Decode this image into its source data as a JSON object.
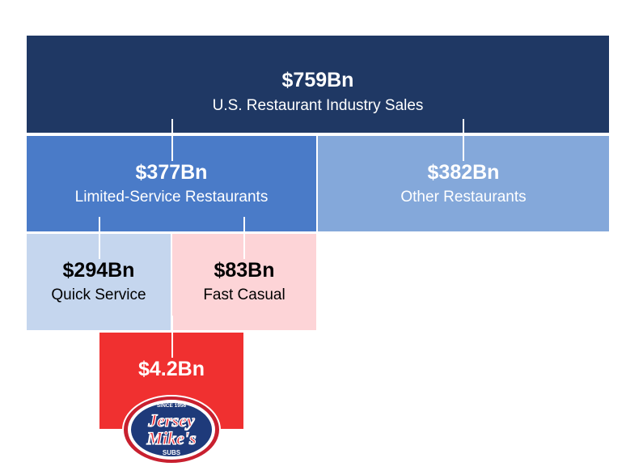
{
  "boxes": {
    "total": {
      "value": "$759Bn",
      "label": "U.S. Restaurant Industry Sales"
    },
    "limited_service": {
      "value": "$377Bn",
      "label": "Limited-Service Restaurants"
    },
    "other": {
      "value": "$382Bn",
      "label": "Other Restaurants"
    },
    "quick_service": {
      "value": "$294Bn",
      "label": "Quick Service"
    },
    "fast_casual": {
      "value": "$83Bn",
      "label": "Fast Casual"
    },
    "jersey_mikes": {
      "value": "$4.2Bn"
    }
  },
  "logo": {
    "top_text": "SINCE 1956",
    "line1": "Jersey",
    "line2": "Mike's",
    "bottom_text": "SUBS"
  },
  "colors": {
    "total": "#1f3864",
    "limited_service": "#4a7bc8",
    "other": "#84a8da",
    "quick_service": "#c5d6ee",
    "fast_casual": "#fdd4d7",
    "jersey_mikes": "#f03030"
  }
}
